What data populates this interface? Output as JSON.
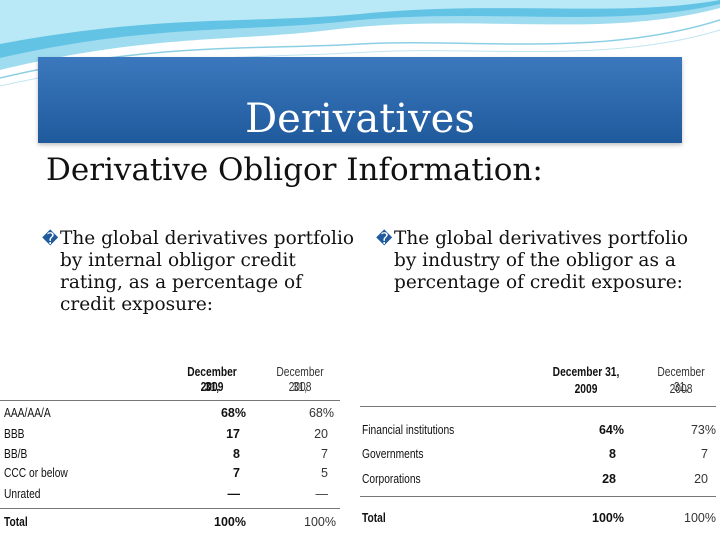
{
  "slide": {
    "title": "Derivatives",
    "subtitle": "Derivative Obligor Information:"
  },
  "bullets": {
    "marker": "�",
    "left": "The global derivatives portfolio by internal obligor credit rating, as a percentage of credit exposure:",
    "right": "The global derivatives portfolio by industry of the obligor as a percentage of credit exposure:"
  },
  "table_rating": {
    "headers": {
      "col1_line1": "December 31,",
      "col1_line2": "2009",
      "col2_line1": "December 31,",
      "col2_line2": "2008"
    },
    "rows": [
      {
        "label": "AAA/AA/A",
        "v2009": "68%",
        "v2008": "68%"
      },
      {
        "label": "BBB",
        "v2009": "17",
        "v2008": "20"
      },
      {
        "label": "BB/B",
        "v2009": "8",
        "v2008": "7"
      },
      {
        "label": "CCC or below",
        "v2009": "7",
        "v2008": "5"
      },
      {
        "label": "Unrated",
        "v2009": "—",
        "v2008": "—"
      }
    ],
    "total": {
      "label": "Total",
      "v2009": "100%",
      "v2008": "100%"
    }
  },
  "table_industry": {
    "headers": {
      "col1_line1": "December 31,",
      "col1_line2": "2009",
      "col2_line1": "December 31,",
      "col2_line2": "2008"
    },
    "rows": [
      {
        "label": "Financial institutions",
        "v2009": "64%",
        "v2008": "73%"
      },
      {
        "label": "Governments",
        "v2009": "8",
        "v2008": "7"
      },
      {
        "label": "Corporations",
        "v2009": "28",
        "v2008": "20"
      }
    ],
    "total": {
      "label": "Total",
      "v2009": "100%",
      "v2008": "100%"
    }
  },
  "theme": {
    "title_bar_color": "#2a66aa",
    "wave_color": "#7fd0ea"
  }
}
